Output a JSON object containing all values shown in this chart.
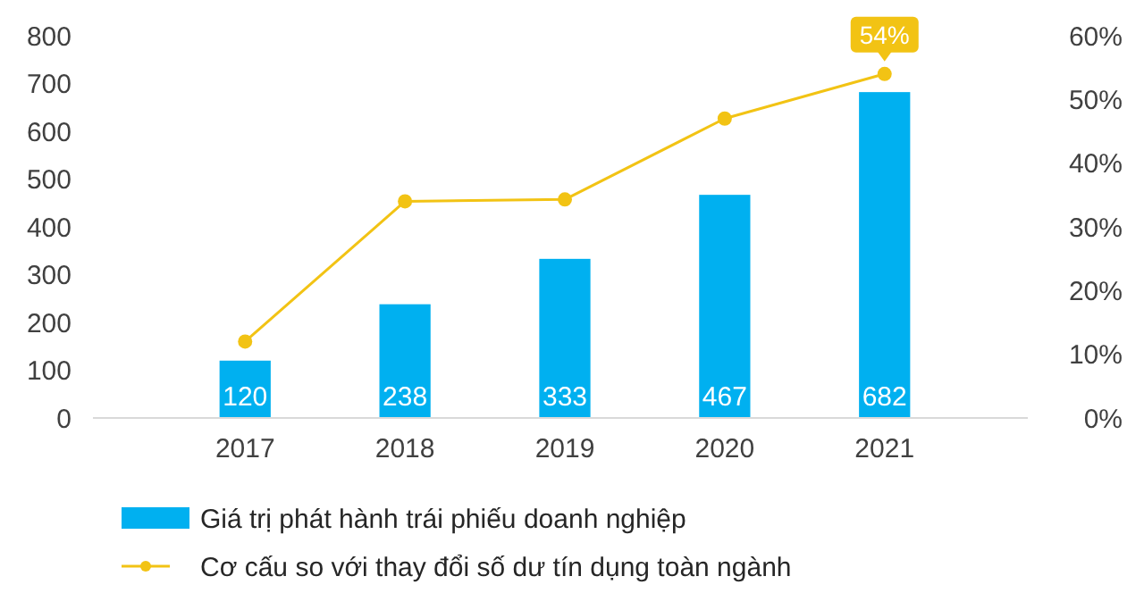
{
  "chart_data": {
    "type": "bar",
    "categories": [
      "2017",
      "2018",
      "2019",
      "2020",
      "2021"
    ],
    "series": [
      {
        "name": "Giá trị phát hành trái phiếu doanh nghiệp",
        "color": "#00b0f0",
        "values": [
          120,
          238,
          333,
          467,
          682
        ],
        "value_labels": [
          "120",
          "238",
          "333",
          "467",
          "682"
        ]
      },
      {
        "name": "Cơ cấu so với thay đổi số dư tín dụng toàn ngành",
        "type": "line",
        "axis": "y2",
        "color": "#f2c314",
        "marker": "circle",
        "values": [
          12,
          34,
          34.3,
          47,
          54
        ],
        "value_labels": [
          null,
          null,
          null,
          null,
          "54%"
        ]
      }
    ],
    "ylim": [
      0,
      800
    ],
    "yticks": [
      0,
      100,
      200,
      300,
      400,
      500,
      600,
      700,
      800
    ],
    "y2lim": [
      0,
      60
    ],
    "y2ticks": [
      {
        "value": 0,
        "label": "0%"
      },
      {
        "value": 10,
        "label": "10%"
      },
      {
        "value": 20,
        "label": "20%"
      },
      {
        "value": 30,
        "label": "30%"
      },
      {
        "value": 40,
        "label": "40%"
      },
      {
        "value": 50,
        "label": "50%"
      },
      {
        "value": 60,
        "label": "60%"
      }
    ],
    "grid": false,
    "legend": "bottom"
  }
}
